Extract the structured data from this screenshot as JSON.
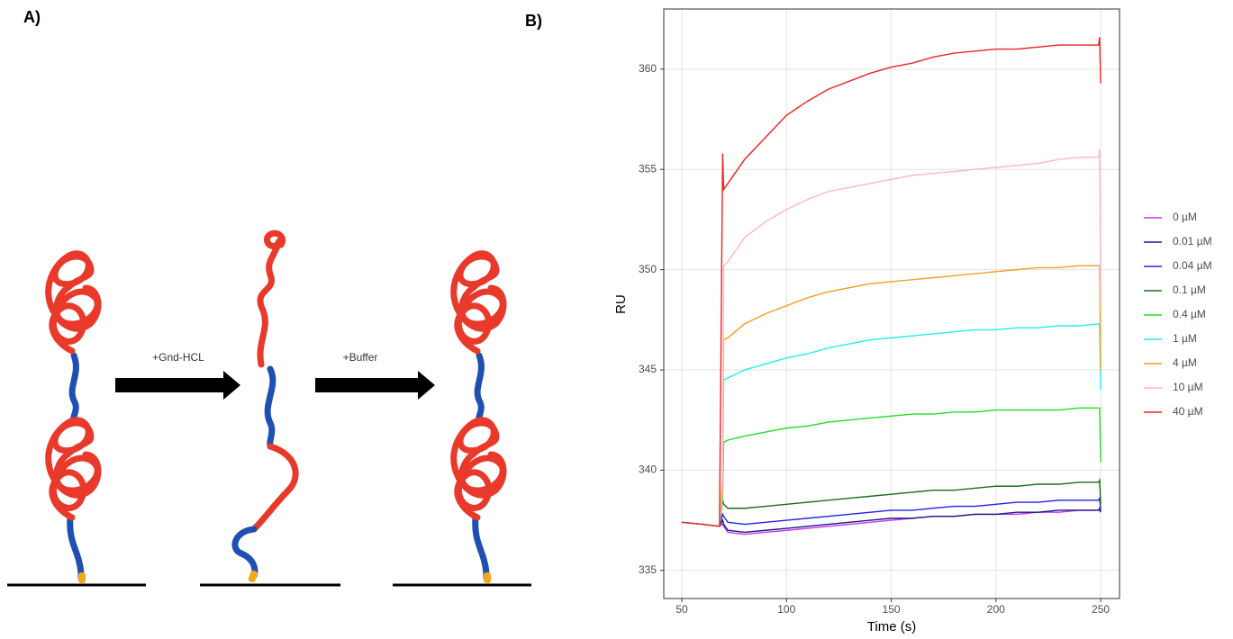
{
  "diagram": {
    "panel_label": "A)",
    "steps": [
      "+Gnd-HCL",
      "+Buffer"
    ]
  },
  "chart_data": {
    "type": "line",
    "panel_label": "B)",
    "x_label": "Time (s)",
    "y_label": "RU",
    "xlim": [
      41.4,
      259
    ],
    "ylim": [
      333.6,
      363
    ],
    "xticks": [
      50,
      100,
      150,
      200,
      250
    ],
    "yticks": [
      335,
      340,
      345,
      350,
      355,
      360
    ],
    "grid": true,
    "legend": "right",
    "x": [
      50,
      60,
      68,
      69.5,
      70,
      72,
      80,
      90,
      100,
      110,
      120,
      130,
      140,
      150,
      160,
      170,
      180,
      190,
      200,
      210,
      220,
      230,
      240,
      249,
      249.5,
      250
    ],
    "series": [
      {
        "name": "0 µM",
        "color": "#cc33ff",
        "values": [
          337.4,
          337.3,
          337.2,
          337.3,
          337.2,
          336.9,
          336.8,
          336.9,
          337,
          337.1,
          337.2,
          337.3,
          337.4,
          337.5,
          337.6,
          337.7,
          337.7,
          337.8,
          337.8,
          337.8,
          337.9,
          337.9,
          338,
          338,
          338,
          337.9
        ]
      },
      {
        "name": "0.01 µM",
        "color": "#1a1a80",
        "values": [
          337.4,
          337.3,
          337.2,
          337.5,
          337.3,
          337,
          336.9,
          337,
          337.1,
          337.2,
          337.3,
          337.4,
          337.5,
          337.6,
          337.6,
          337.7,
          337.7,
          337.8,
          337.8,
          337.9,
          337.9,
          338,
          338,
          338,
          338.1,
          337.9
        ]
      },
      {
        "name": "0.04 µM",
        "color": "#2222ee",
        "values": [
          337.4,
          337.3,
          337.2,
          337.8,
          337.7,
          337.4,
          337.3,
          337.4,
          337.5,
          337.6,
          337.7,
          337.8,
          337.9,
          338,
          338,
          338.1,
          338.2,
          338.2,
          338.3,
          338.4,
          338.4,
          338.5,
          338.5,
          338.5,
          338.6,
          338
        ]
      },
      {
        "name": "0.1 µM",
        "color": "#1e6b1e",
        "values": [
          337.4,
          337.3,
          337.2,
          338.5,
          338.3,
          338.1,
          338.1,
          338.2,
          338.3,
          338.4,
          338.5,
          338.6,
          338.7,
          338.8,
          338.9,
          339,
          339,
          339.1,
          339.2,
          339.2,
          339.3,
          339.3,
          339.4,
          339.4,
          339.5,
          338.3
        ]
      },
      {
        "name": "0.4 µM",
        "color": "#22dd22",
        "values": [
          337.4,
          337.3,
          337.2,
          338.5,
          341.4,
          341.5,
          341.7,
          341.9,
          342.1,
          342.2,
          342.4,
          342.5,
          342.6,
          342.7,
          342.8,
          342.8,
          342.9,
          342.9,
          343,
          343,
          343,
          343,
          343.1,
          343.1,
          343.1,
          340.4
        ]
      },
      {
        "name": "1 µM",
        "color": "#22eeee",
        "values": [
          337.4,
          337.3,
          337.2,
          339,
          344.5,
          344.6,
          345,
          345.3,
          345.6,
          345.8,
          346.1,
          346.3,
          346.5,
          346.6,
          346.7,
          346.8,
          346.9,
          347,
          347,
          347.1,
          347.1,
          347.2,
          347.2,
          347.3,
          347.2,
          344
        ]
      },
      {
        "name": "4 µM",
        "color": "#f0a020",
        "values": [
          337.4,
          337.3,
          337.2,
          339.8,
          346.5,
          346.6,
          347.3,
          347.8,
          348.2,
          348.6,
          348.9,
          349.1,
          349.3,
          349.4,
          349.5,
          349.6,
          349.7,
          349.8,
          349.9,
          350,
          350.1,
          350.1,
          350.2,
          350.2,
          350.2,
          345
        ]
      },
      {
        "name": "10 µM",
        "color": "#ffb6c1",
        "values": [
          337.4,
          337.3,
          337.2,
          339,
          350.2,
          350.4,
          351.6,
          352.4,
          353,
          353.5,
          353.9,
          354.1,
          354.3,
          354.5,
          354.7,
          354.8,
          354.9,
          355,
          355.1,
          355.2,
          355.3,
          355.5,
          355.6,
          355.6,
          356,
          348
        ]
      },
      {
        "name": "40 µM",
        "color": "#ee2222",
        "values": [
          337.4,
          337.3,
          337.2,
          355.8,
          354,
          354.3,
          355.5,
          356.6,
          357.7,
          358.4,
          359,
          359.4,
          359.8,
          360.1,
          360.3,
          360.6,
          360.8,
          360.9,
          361,
          361,
          361.1,
          361.2,
          361.2,
          361.2,
          361.6,
          359.3
        ]
      }
    ]
  }
}
